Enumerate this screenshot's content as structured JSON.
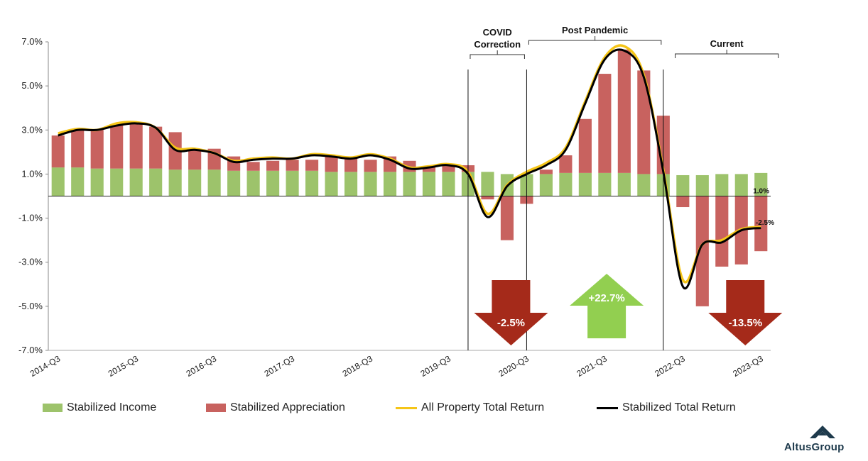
{
  "chart_data": {
    "type": "bar",
    "title": "",
    "xlabel": "",
    "ylabel": "",
    "ylim": [
      -7,
      7
    ],
    "y_ticks": [
      "7.0%",
      "5.0%",
      "3.0%",
      "1.0%",
      "-1.0%",
      "-3.0%",
      "-5.0%",
      "-7.0%"
    ],
    "y_tick_values": [
      7,
      5,
      3,
      1,
      -1,
      -3,
      -5,
      -7
    ],
    "stacked": true,
    "grid": false,
    "legend_position": "bottom",
    "x": [
      "2014-Q3",
      "2014-Q4",
      "2015-Q1",
      "2015-Q2",
      "2015-Q3",
      "2015-Q4",
      "2016-Q1",
      "2016-Q2",
      "2016-Q3",
      "2016-Q4",
      "2017-Q1",
      "2017-Q2",
      "2017-Q3",
      "2017-Q4",
      "2018-Q1",
      "2018-Q2",
      "2018-Q3",
      "2018-Q4",
      "2019-Q1",
      "2019-Q2",
      "2019-Q3",
      "2019-Q4",
      "2020-Q1",
      "2020-Q2",
      "2020-Q3",
      "2020-Q4",
      "2021-Q1",
      "2021-Q2",
      "2021-Q3",
      "2021-Q4",
      "2022-Q1",
      "2022-Q2",
      "2022-Q3",
      "2022-Q4",
      "2023-Q1",
      "2023-Q2",
      "2023-Q3"
    ],
    "x_tick_labels": [
      "2014-Q3",
      "2015-Q3",
      "2016-Q3",
      "2017-Q3",
      "2018-Q3",
      "2019-Q3",
      "2020-Q3",
      "2021-Q3",
      "2022-Q3",
      "2023-Q3"
    ],
    "x_tick_indices": [
      0,
      4,
      8,
      12,
      16,
      20,
      24,
      28,
      32,
      36
    ],
    "series": [
      {
        "name": "Stabilized Income",
        "kind": "bar",
        "color": "#9dc36b",
        "values": [
          1.3,
          1.3,
          1.25,
          1.25,
          1.25,
          1.25,
          1.2,
          1.2,
          1.2,
          1.15,
          1.15,
          1.15,
          1.15,
          1.15,
          1.1,
          1.1,
          1.1,
          1.1,
          1.1,
          1.1,
          1.1,
          1.1,
          1.1,
          1.0,
          1.0,
          1.0,
          1.05,
          1.05,
          1.05,
          1.05,
          1.0,
          1.0,
          0.95,
          0.95,
          1.0,
          1.0,
          1.05
        ]
      },
      {
        "name": "Stabilized Appreciation",
        "kind": "bar",
        "color": "#c8625f",
        "values": [
          1.45,
          1.75,
          1.75,
          2.0,
          2.05,
          1.9,
          1.7,
          0.9,
          0.95,
          0.65,
          0.4,
          0.45,
          0.5,
          0.5,
          0.7,
          0.6,
          0.55,
          0.7,
          0.5,
          0.2,
          0.3,
          0.3,
          -0.15,
          -2.0,
          -0.35,
          0.2,
          0.8,
          2.45,
          4.5,
          5.6,
          4.7,
          2.65,
          -0.5,
          -5.0,
          -3.2,
          -3.1,
          -2.5
        ]
      },
      {
        "name": "All Property Total Return",
        "kind": "line",
        "color": "#f5c518",
        "values": [
          2.85,
          3.05,
          3.0,
          3.3,
          3.35,
          3.1,
          2.2,
          2.15,
          1.95,
          1.6,
          1.7,
          1.75,
          1.7,
          1.9,
          1.85,
          1.75,
          1.9,
          1.7,
          1.3,
          1.35,
          1.45,
          1.1,
          -0.8,
          0.5,
          1.1,
          1.5,
          2.2,
          4.3,
          6.3,
          6.8,
          5.5,
          1.2,
          -3.8,
          -2.2,
          -2.0,
          -1.5,
          -1.4
        ]
      },
      {
        "name": "Stabilized Total Return",
        "kind": "line",
        "color": "#000000",
        "values": [
          2.75,
          3.0,
          3.0,
          3.2,
          3.3,
          3.1,
          2.1,
          2.1,
          1.95,
          1.55,
          1.65,
          1.7,
          1.7,
          1.85,
          1.8,
          1.7,
          1.85,
          1.65,
          1.25,
          1.3,
          1.4,
          1.0,
          -0.95,
          0.45,
          1.0,
          1.4,
          2.1,
          4.2,
          6.2,
          6.6,
          5.4,
          1.1,
          -4.1,
          -2.2,
          -2.1,
          -1.55,
          -1.45
        ]
      }
    ],
    "annotations": {
      "end_income_label": "1.0%",
      "end_appreciation_label": "-2.5%",
      "periods": [
        {
          "label_lines": [
            "COVID",
            "Correction"
          ],
          "start_index": 21.5,
          "end_index": 24.5
        },
        {
          "label_lines": [
            "Post Pandemic"
          ],
          "start_index": 24.5,
          "end_index": 31.5
        },
        {
          "label_lines": [
            "Current"
          ],
          "start_index": 32,
          "end_index": 37.5
        }
      ],
      "vlines_index": [
        21.5,
        24.5,
        31.5
      ],
      "arrows": [
        {
          "label": "-2.5%",
          "direction": "down",
          "color": "#a52a1a",
          "center_index": 23.2
        },
        {
          "label": "+22.7%",
          "direction": "up",
          "color": "#92cf50",
          "center_index": 28.1
        },
        {
          "label": "-13.5%",
          "direction": "down",
          "color": "#a52a1a",
          "center_index": 35.2
        }
      ]
    }
  },
  "legend": {
    "items": [
      {
        "label": "Stabilized Income",
        "type": "bar",
        "color": "#9dc36b"
      },
      {
        "label": "Stabilized Appreciation",
        "type": "bar",
        "color": "#c8625f"
      },
      {
        "label": "All Property Total Return",
        "type": "line",
        "color": "#f5c518"
      },
      {
        "label": "Stabilized Total Return",
        "type": "line",
        "color": "#000000"
      }
    ]
  },
  "brand": {
    "name": "AltusGroup",
    "logo_color": "#1e3a4c"
  }
}
